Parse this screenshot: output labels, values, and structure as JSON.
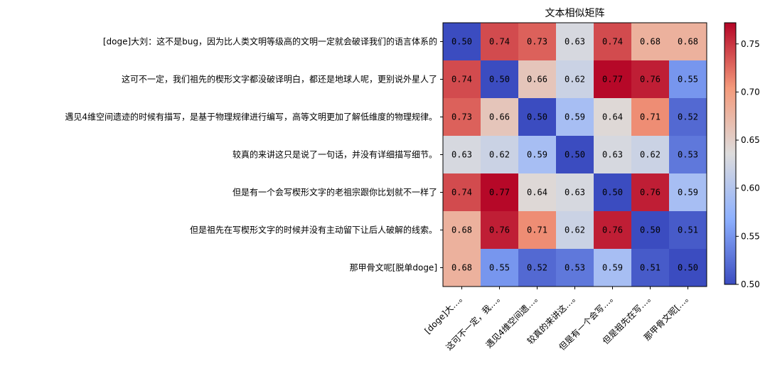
{
  "chart_data": {
    "type": "heatmap",
    "title": "文本相似矩阵",
    "row_labels": [
      "[doge]大刘：这不是bug，因为比人类文明等级高的文明一定就会破译我们的语言体系的",
      "这可不一定，我们祖先的楔形文字都没破译明白，都还是地球人呢，更别说外星人了",
      "遇见4维空间遗迹的时候有描写，是基于物理规律进行编写，高等文明更加了解低维度的物理规律。",
      "较真的来讲这只是说了一句话，并没有详细描写细节。",
      "但是有一个会写楔形文字的老祖宗跟你比划就不一样了",
      "但是祖先在写楔形文字的时候并没有主动留下让后人破解的线索。",
      "那甲骨文呢[脱单doge]"
    ],
    "col_labels": [
      "[doge]大…。",
      "这可不一定，我…。",
      "遇见4维空间遗…。",
      "较真的来讲这…。",
      "但是有一个会写…。",
      "但是祖先在写…。",
      "那甲骨文呢[…。"
    ],
    "matrix": [
      [
        0.5,
        0.74,
        0.73,
        0.63,
        0.74,
        0.68,
        0.68
      ],
      [
        0.74,
        0.5,
        0.66,
        0.62,
        0.77,
        0.76,
        0.55
      ],
      [
        0.73,
        0.66,
        0.5,
        0.59,
        0.64,
        0.71,
        0.52
      ],
      [
        0.63,
        0.62,
        0.59,
        0.5,
        0.63,
        0.62,
        0.53
      ],
      [
        0.74,
        0.77,
        0.64,
        0.63,
        0.5,
        0.76,
        0.59
      ],
      [
        0.68,
        0.76,
        0.71,
        0.62,
        0.76,
        0.5,
        0.51
      ],
      [
        0.68,
        0.55,
        0.52,
        0.53,
        0.59,
        0.51,
        0.5
      ]
    ],
    "value_format": "0.00",
    "colormap": "coolwarm",
    "colormap_stops": [
      "#3b4cc0",
      "#8db0fe",
      "#dddcdc",
      "#f49a7b",
      "#b40426"
    ],
    "vmin": 0.5,
    "vmax": 0.772,
    "colorbar_ticks": [
      "0.50",
      "0.55",
      "0.60",
      "0.65",
      "0.70",
      "0.75"
    ],
    "grid": false,
    "legend": "colorbar-right"
  }
}
